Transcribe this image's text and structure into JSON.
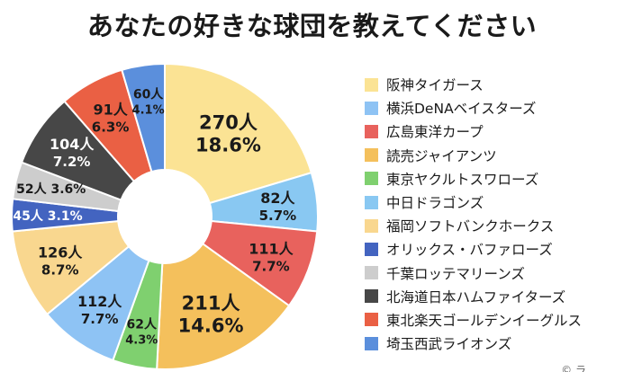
{
  "chart_data": {
    "type": "pie",
    "title": "あなたの好きな球団を教えてください",
    "unit_suffix": "人",
    "percent_suffix": "%",
    "slices": [
      {
        "label": "阪神タイガース",
        "value": 270,
        "percent": "18.6",
        "color": "#fbe394"
      },
      {
        "label": "中日ドラゴンズ",
        "value": 82,
        "percent": "5.7",
        "color": "#89c8f2"
      },
      {
        "label": "広島東洋カープ",
        "value": 111,
        "percent": "7.7",
        "color": "#e8625d"
      },
      {
        "label": "読売ジャイアンツ",
        "value": 211,
        "percent": "14.6",
        "color": "#f4c05c"
      },
      {
        "label": "東京ヤクルトスワローズ",
        "value": 62,
        "percent": "4.3",
        "color": "#7fd06f"
      },
      {
        "label": "横浜DeNAベイスターズ",
        "value": 112,
        "percent": "7.7",
        "color": "#8ec3f4"
      },
      {
        "label": "福岡ソフトバンクホークス",
        "value": 126,
        "percent": "8.7",
        "color": "#f9d78f"
      },
      {
        "label": "オリックス・バファローズ",
        "value": 45,
        "percent": "3.1",
        "color": "#4364c0"
      },
      {
        "label": "千葉ロッテマリーンズ",
        "value": 52,
        "percent": "3.6",
        "color": "#cdcdcd"
      },
      {
        "label": "北海道日本ハムファイターズ",
        "value": 104,
        "percent": "7.2",
        "color": "#474747"
      },
      {
        "label": "東北楽天ゴールデンイーグルス",
        "value": 91,
        "percent": "6.3",
        "color": "#ea6044"
      },
      {
        "label": "埼玉西武ライオンズ",
        "value": 60,
        "percent": "4.1",
        "color": "#5b8fdc"
      }
    ],
    "legend": [
      {
        "label": "阪神タイガース",
        "color": "#fbe394"
      },
      {
        "label": "横浜DeNAベイスターズ",
        "color": "#8ec3f4"
      },
      {
        "label": "広島東洋カープ",
        "color": "#e8625d"
      },
      {
        "label": "読売ジャイアンツ",
        "color": "#f4c05c"
      },
      {
        "label": "東京ヤクルトスワローズ",
        "color": "#7fd06f"
      },
      {
        "label": "中日ドラゴンズ",
        "color": "#89c8f2"
      },
      {
        "label": "福岡ソフトバンクホークス",
        "color": "#f9d78f"
      },
      {
        "label": "オリックス・バファローズ",
        "color": "#4364c0"
      },
      {
        "label": "千葉ロッテマリーンズ",
        "color": "#cdcdcd"
      },
      {
        "label": "北海道日本ハムファイターズ",
        "color": "#474747"
      },
      {
        "label": "東北楽天ゴールデンイーグルス",
        "color": "#ea6044"
      },
      {
        "label": "埼玉西武ライオンズ",
        "color": "#5b8fdc"
      }
    ],
    "legend_position": "right"
  },
  "footer": "© ラ"
}
